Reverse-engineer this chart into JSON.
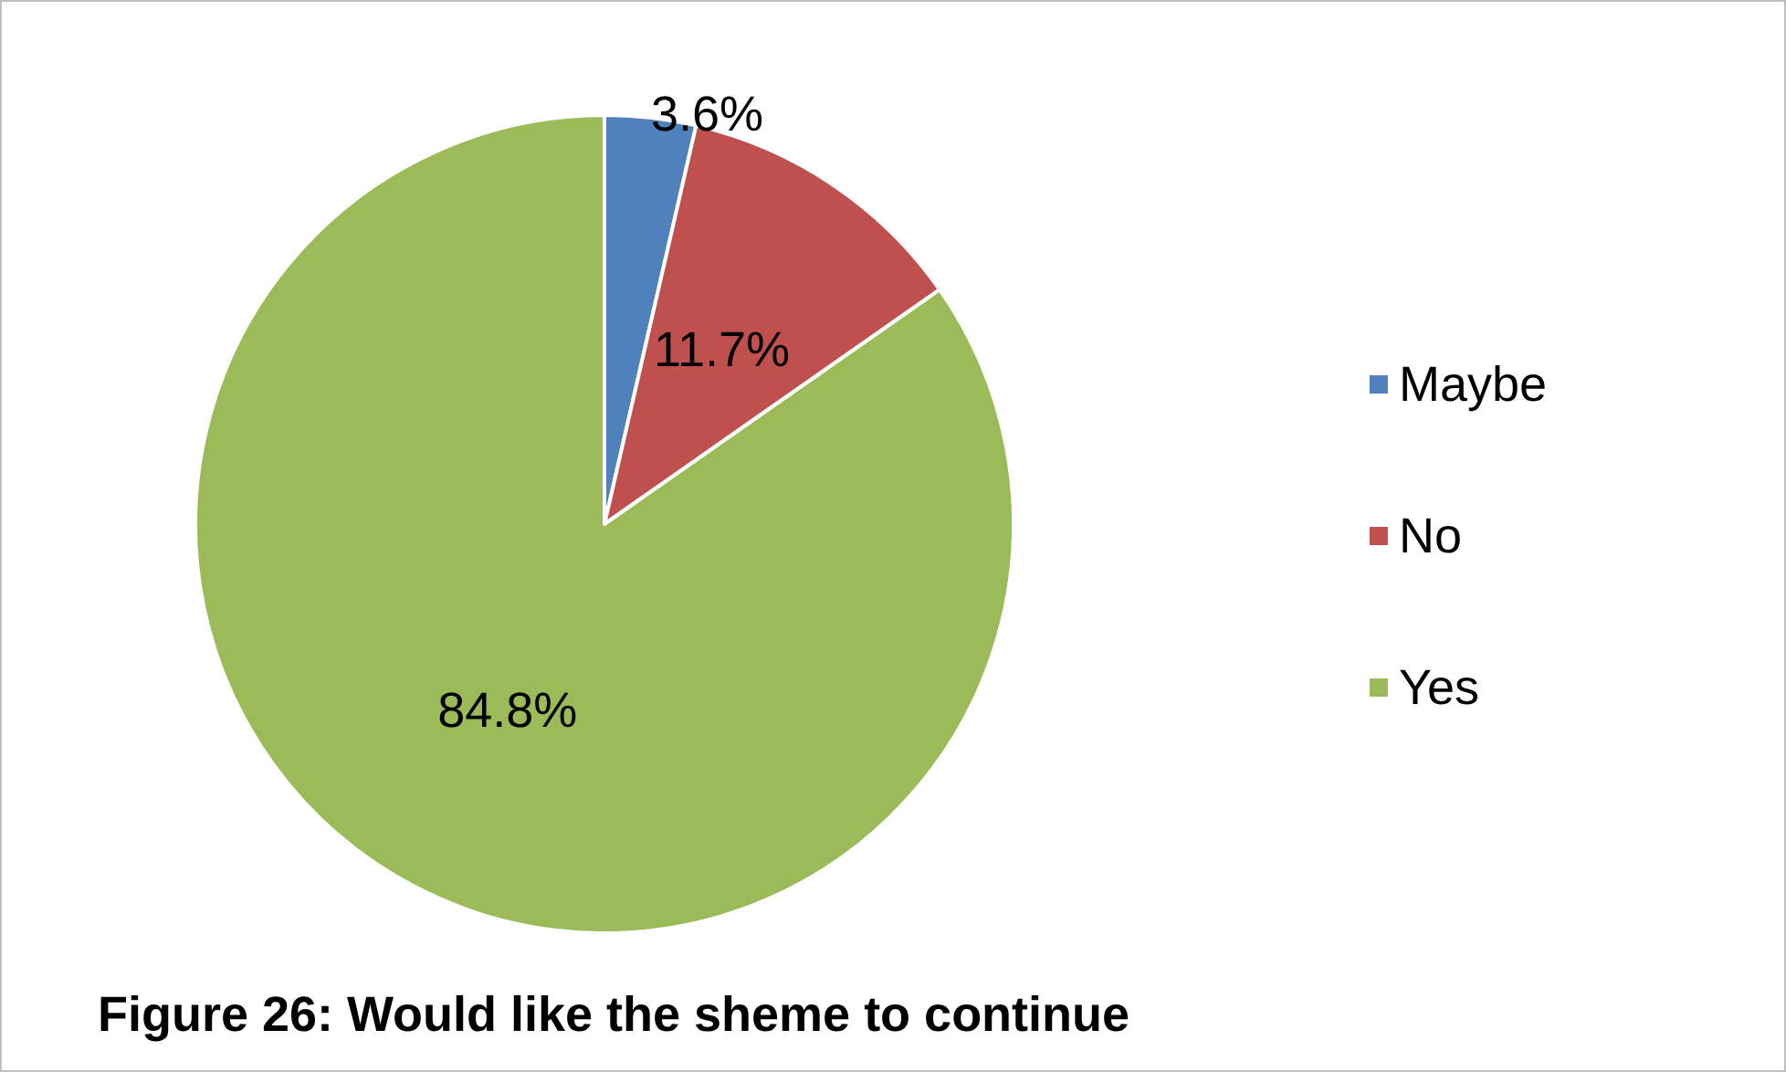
{
  "chart_data": {
    "type": "pie",
    "title": "Figure 26: Would like the sheme to continue",
    "categories": [
      "Maybe",
      "No",
      "Yes"
    ],
    "values": [
      3.6,
      11.7,
      84.8
    ],
    "colors": [
      "#4f81bd",
      "#c0504d",
      "#9bbb59"
    ],
    "value_labels": [
      "3.6%",
      "11.7%",
      "84.8%"
    ],
    "legend": "right"
  }
}
